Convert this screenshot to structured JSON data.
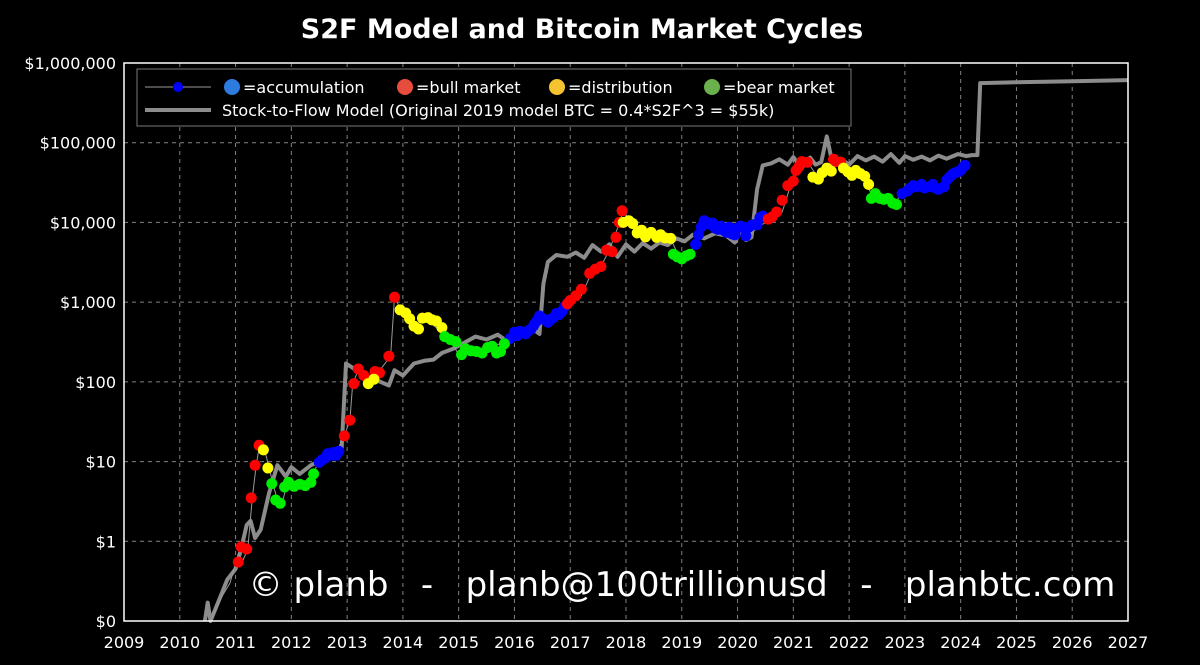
{
  "chart_data": {
    "type": "scatter",
    "title": "S2F Model and Bitcoin Market Cycles",
    "y_scale": "log",
    "xlim": [
      2009,
      2027
    ],
    "ylim": [
      0.1,
      1000000
    ],
    "grid": true,
    "legend_placement": "top-left",
    "x_ticks": [
      "2009",
      "2010",
      "2011",
      "2012",
      "2013",
      "2014",
      "2015",
      "2016",
      "2017",
      "2018",
      "2019",
      "2020",
      "2021",
      "2022",
      "2023",
      "2024",
      "2025",
      "2026",
      "2027"
    ],
    "y_ticks": [
      {
        "value": 0.1,
        "label": "$0"
      },
      {
        "value": 1,
        "label": "$1"
      },
      {
        "value": 10,
        "label": "$10"
      },
      {
        "value": 100,
        "label": "$100"
      },
      {
        "value": 1000,
        "label": "$1,000"
      },
      {
        "value": 10000,
        "label": "$10,000"
      },
      {
        "value": 100000,
        "label": "$100,000"
      },
      {
        "value": 1000000,
        "label": "$1,000,000"
      }
    ],
    "legend": {
      "price_series": "=accumulation",
      "bull": "=bull market",
      "distribution": "=distribution",
      "bear": "=bear market",
      "model": "Stock-to-Flow Model (Original 2019 model BTC = 0.4*S2F^3 = $55k)"
    },
    "colors": {
      "background": "#000000",
      "accumulation": "#0000ff",
      "bull": "#ff0000",
      "distribution": "#ffff00",
      "bear": "#00ee00",
      "model": "#8c8c8c",
      "price_line": "#9a9a9a",
      "legend_accumulation_icon": "#2e7be0",
      "legend_bull_icon": "#e84c3d",
      "legend_distribution_icon": "#f4c430",
      "legend_bear_icon": "#6ab04c"
    },
    "s2f_model": {
      "name": "Stock-to-Flow Model (Original 2019 model BTC = 0.4*S2F^3 = $55k)",
      "points": [
        [
          2010.45,
          0.1
        ],
        [
          2010.5,
          0.17
        ],
        [
          2010.55,
          0.1
        ],
        [
          2010.75,
          0.22
        ],
        [
          2010.85,
          0.33
        ],
        [
          2011.0,
          0.45
        ],
        [
          2011.1,
          0.8
        ],
        [
          2011.2,
          1.6
        ],
        [
          2011.27,
          1.8
        ],
        [
          2011.35,
          1.1
        ],
        [
          2011.45,
          1.4
        ],
        [
          2011.6,
          4.0
        ],
        [
          2011.75,
          9.0
        ],
        [
          2011.9,
          6.5
        ],
        [
          2012.0,
          8.5
        ],
        [
          2012.15,
          7.0
        ],
        [
          2012.35,
          9.0
        ],
        [
          2012.55,
          10.5
        ],
        [
          2012.75,
          12.5
        ],
        [
          2012.9,
          13.5
        ],
        [
          2012.98,
          170
        ],
        [
          2013.1,
          150
        ],
        [
          2013.3,
          120
        ],
        [
          2013.45,
          110
        ],
        [
          2013.6,
          100
        ],
        [
          2013.75,
          90
        ],
        [
          2013.85,
          140
        ],
        [
          2014.0,
          120
        ],
        [
          2014.2,
          170
        ],
        [
          2014.4,
          185
        ],
        [
          2014.55,
          190
        ],
        [
          2014.7,
          230
        ],
        [
          2014.9,
          260
        ],
        [
          2015.1,
          310
        ],
        [
          2015.3,
          370
        ],
        [
          2015.5,
          340
        ],
        [
          2015.7,
          390
        ],
        [
          2015.85,
          330
        ],
        [
          2016.0,
          420
        ],
        [
          2016.2,
          390
        ],
        [
          2016.35,
          450
        ],
        [
          2016.45,
          400
        ],
        [
          2016.52,
          1700
        ],
        [
          2016.6,
          3200
        ],
        [
          2016.75,
          3900
        ],
        [
          2016.95,
          3700
        ],
        [
          2017.1,
          4200
        ],
        [
          2017.25,
          3600
        ],
        [
          2017.4,
          5200
        ],
        [
          2017.55,
          4300
        ],
        [
          2017.7,
          5300
        ],
        [
          2017.85,
          3700
        ],
        [
          2018.0,
          5300
        ],
        [
          2018.15,
          4300
        ],
        [
          2018.3,
          5500
        ],
        [
          2018.45,
          4700
        ],
        [
          2018.6,
          5600
        ],
        [
          2018.75,
          5200
        ],
        [
          2018.9,
          6300
        ],
        [
          2019.05,
          5800
        ],
        [
          2019.2,
          7000
        ],
        [
          2019.4,
          6300
        ],
        [
          2019.6,
          7300
        ],
        [
          2019.8,
          6800
        ],
        [
          2019.95,
          5600
        ],
        [
          2020.05,
          7800
        ],
        [
          2020.15,
          6000
        ],
        [
          2020.25,
          6500
        ],
        [
          2020.35,
          26000
        ],
        [
          2020.45,
          52000
        ],
        [
          2020.6,
          55000
        ],
        [
          2020.75,
          62000
        ],
        [
          2020.9,
          53000
        ],
        [
          2021.0,
          66000
        ],
        [
          2021.15,
          48000
        ],
        [
          2021.3,
          65000
        ],
        [
          2021.4,
          53000
        ],
        [
          2021.5,
          57000
        ],
        [
          2021.6,
          120000
        ],
        [
          2021.7,
          55000
        ],
        [
          2021.85,
          63000
        ],
        [
          2022.0,
          53000
        ],
        [
          2022.15,
          68000
        ],
        [
          2022.3,
          60000
        ],
        [
          2022.45,
          67000
        ],
        [
          2022.6,
          58000
        ],
        [
          2022.75,
          72000
        ],
        [
          2022.9,
          56000
        ],
        [
          2023.0,
          68000
        ],
        [
          2023.15,
          61000
        ],
        [
          2023.3,
          67000
        ],
        [
          2023.45,
          60000
        ],
        [
          2023.6,
          69000
        ],
        [
          2023.75,
          63000
        ],
        [
          2023.95,
          72000
        ],
        [
          2024.1,
          68000
        ],
        [
          2024.2,
          70000
        ],
        [
          2024.3,
          70000
        ],
        [
          2024.35,
          560000
        ],
        [
          2025.0,
          575000
        ],
        [
          2026.0,
          590000
        ],
        [
          2027.0,
          610000
        ]
      ]
    },
    "price_line": [
      [
        2010.55,
        0.1
      ],
      [
        2010.75,
        0.2
      ],
      [
        2010.9,
        0.3
      ],
      [
        2011.05,
        0.7
      ],
      [
        2011.12,
        0.55
      ],
      [
        2011.22,
        0.8
      ],
      [
        2011.3,
        3.5
      ],
      [
        2011.37,
        9
      ],
      [
        2011.43,
        16
      ],
      [
        2011.52,
        14
      ],
      [
        2011.6,
        8.5
      ],
      [
        2011.67,
        5.3
      ],
      [
        2011.75,
        3.3
      ],
      [
        2011.83,
        3.0
      ],
      [
        2011.92,
        5.0
      ],
      [
        2012.1,
        5.0
      ],
      [
        2012.3,
        5.5
      ],
      [
        2012.5,
        10
      ],
      [
        2012.8,
        13
      ],
      [
        2012.95,
        21
      ],
      [
        2013.05,
        33
      ],
      [
        2013.1,
        95
      ],
      [
        2013.2,
        140
      ],
      [
        2013.3,
        100
      ],
      [
        2013.55,
        130
      ],
      [
        2013.78,
        210
      ],
      [
        2013.85,
        1150
      ],
      [
        2014.0,
        720
      ],
      [
        2014.2,
        500
      ],
      [
        2014.4,
        620
      ],
      [
        2014.65,
        450
      ],
      [
        2014.85,
        330
      ],
      [
        2015.0,
        220
      ],
      [
        2015.3,
        240
      ],
      [
        2015.6,
        270
      ],
      [
        2015.85,
        330
      ],
      [
        2016.0,
        400
      ],
      [
        2016.3,
        430
      ],
      [
        2016.5,
        650
      ],
      [
        2016.75,
        620
      ],
      [
        2016.95,
        950
      ],
      [
        2017.2,
        1200
      ],
      [
        2017.4,
        2500
      ],
      [
        2017.55,
        2800
      ],
      [
        2017.7,
        4500
      ],
      [
        2017.85,
        8500
      ],
      [
        2017.95,
        14000
      ],
      [
        2018.1,
        10000
      ],
      [
        2018.3,
        8000
      ],
      [
        2018.6,
        6700
      ],
      [
        2018.8,
        6300
      ],
      [
        2018.95,
        3700
      ],
      [
        2019.1,
        3800
      ],
      [
        2019.25,
        5300
      ],
      [
        2019.4,
        10000
      ],
      [
        2019.6,
        9500
      ],
      [
        2019.85,
        7500
      ],
      [
        2020.0,
        9000
      ],
      [
        2020.2,
        7000
      ],
      [
        2020.45,
        9500
      ],
      [
        2020.65,
        11500
      ],
      [
        2020.8,
        13500
      ],
      [
        2020.95,
        29000
      ],
      [
        2021.1,
        47000
      ],
      [
        2021.25,
        58000
      ],
      [
        2021.45,
        36000
      ],
      [
        2021.6,
        42000
      ],
      [
        2021.75,
        60000
      ],
      [
        2021.9,
        48000
      ],
      [
        2022.05,
        42000
      ],
      [
        2022.25,
        35000
      ],
      [
        2022.45,
        20000
      ],
      [
        2022.6,
        21000
      ],
      [
        2022.8,
        17000
      ],
      [
        2022.95,
        23000
      ],
      [
        2023.2,
        28000
      ],
      [
        2023.4,
        29000
      ],
      [
        2023.6,
        27000
      ],
      [
        2023.8,
        35000
      ],
      [
        2023.95,
        43000
      ],
      [
        2024.08,
        52000
      ]
    ],
    "accumulation": [
      [
        2012.5,
        9.8
      ],
      [
        2012.55,
        10.5
      ],
      [
        2012.6,
        11
      ],
      [
        2012.65,
        12.5
      ],
      [
        2012.7,
        12
      ],
      [
        2012.75,
        13
      ],
      [
        2012.8,
        12
      ],
      [
        2012.85,
        13.5
      ],
      [
        2015.92,
        350
      ],
      [
        2016.0,
        420
      ],
      [
        2016.05,
        380
      ],
      [
        2016.1,
        430
      ],
      [
        2016.15,
        420
      ],
      [
        2016.2,
        400
      ],
      [
        2016.25,
        440
      ],
      [
        2016.3,
        460
      ],
      [
        2016.35,
        520
      ],
      [
        2016.4,
        580
      ],
      [
        2016.45,
        670
      ],
      [
        2016.5,
        620
      ],
      [
        2016.55,
        600
      ],
      [
        2016.6,
        560
      ],
      [
        2016.65,
        610
      ],
      [
        2016.7,
        640
      ],
      [
        2016.75,
        720
      ],
      [
        2016.8,
        700
      ],
      [
        2016.85,
        760
      ],
      [
        2016.9,
        880
      ],
      [
        2019.25,
        5300
      ],
      [
        2019.3,
        7000
      ],
      [
        2019.35,
        8800
      ],
      [
        2019.4,
        10500
      ],
      [
        2019.45,
        10000
      ],
      [
        2019.5,
        9500
      ],
      [
        2019.55,
        9800
      ],
      [
        2019.6,
        8500
      ],
      [
        2019.65,
        8200
      ],
      [
        2019.7,
        9000
      ],
      [
        2019.75,
        8000
      ],
      [
        2019.8,
        7500
      ],
      [
        2019.85,
        8700
      ],
      [
        2019.9,
        7200
      ],
      [
        2019.95,
        7000
      ],
      [
        2020.0,
        8500
      ],
      [
        2020.05,
        9000
      ],
      [
        2020.1,
        8700
      ],
      [
        2020.15,
        6800
      ],
      [
        2020.2,
        8700
      ],
      [
        2020.25,
        9200
      ],
      [
        2020.3,
        9400
      ],
      [
        2020.35,
        9300
      ],
      [
        2020.4,
        11500
      ],
      [
        2020.45,
        12000
      ],
      [
        2022.95,
        23000
      ],
      [
        2023.05,
        25000
      ],
      [
        2023.1,
        27000
      ],
      [
        2023.15,
        29000
      ],
      [
        2023.2,
        28000
      ],
      [
        2023.3,
        30000
      ],
      [
        2023.35,
        27000
      ],
      [
        2023.45,
        28000
      ],
      [
        2023.5,
        30000
      ],
      [
        2023.55,
        27000
      ],
      [
        2023.6,
        26000
      ],
      [
        2023.7,
        28000
      ],
      [
        2023.75,
        34000
      ],
      [
        2023.8,
        37000
      ],
      [
        2023.85,
        40000
      ],
      [
        2023.9,
        42000
      ],
      [
        2023.95,
        43000
      ],
      [
        2024.0,
        45000
      ],
      [
        2024.05,
        50000
      ],
      [
        2024.08,
        52000
      ]
    ],
    "bull": [
      [
        2011.05,
        0.55
      ],
      [
        2011.1,
        0.85
      ],
      [
        2011.2,
        0.8
      ],
      [
        2011.28,
        3.5
      ],
      [
        2011.35,
        9
      ],
      [
        2011.42,
        16
      ],
      [
        2012.95,
        21
      ],
      [
        2013.05,
        33
      ],
      [
        2013.12,
        95
      ],
      [
        2013.2,
        145
      ],
      [
        2013.3,
        120
      ],
      [
        2013.5,
        135
      ],
      [
        2013.58,
        130
      ],
      [
        2013.75,
        210
      ],
      [
        2013.85,
        1150
      ],
      [
        2016.95,
        950
      ],
      [
        2017.0,
        1050
      ],
      [
        2017.1,
        1200
      ],
      [
        2017.2,
        1450
      ],
      [
        2017.35,
        2300
      ],
      [
        2017.45,
        2600
      ],
      [
        2017.55,
        2800
      ],
      [
        2017.65,
        4500
      ],
      [
        2017.75,
        4300
      ],
      [
        2017.82,
        6500
      ],
      [
        2017.88,
        10000
      ],
      [
        2017.93,
        14000
      ],
      [
        2020.55,
        11000
      ],
      [
        2020.62,
        11700
      ],
      [
        2020.7,
        13500
      ],
      [
        2020.8,
        19000
      ],
      [
        2020.9,
        29000
      ],
      [
        2021.0,
        33000
      ],
      [
        2021.05,
        45000
      ],
      [
        2021.1,
        50000
      ],
      [
        2021.15,
        58000
      ],
      [
        2021.25,
        57000
      ],
      [
        2021.72,
        62000
      ],
      [
        2021.78,
        58000
      ],
      [
        2021.85,
        57000
      ]
    ],
    "distribution": [
      [
        2011.5,
        14
      ],
      [
        2011.58,
        8.3
      ],
      [
        2013.38,
        95
      ],
      [
        2013.48,
        108
      ],
      [
        2013.95,
        800
      ],
      [
        2014.05,
        730
      ],
      [
        2014.12,
        620
      ],
      [
        2014.2,
        500
      ],
      [
        2014.28,
        460
      ],
      [
        2014.35,
        630
      ],
      [
        2014.45,
        640
      ],
      [
        2014.52,
        600
      ],
      [
        2014.6,
        580
      ],
      [
        2014.7,
        480
      ],
      [
        2017.95,
        10000
      ],
      [
        2018.05,
        10500
      ],
      [
        2018.12,
        9700
      ],
      [
        2018.2,
        7400
      ],
      [
        2018.28,
        8000
      ],
      [
        2018.35,
        6600
      ],
      [
        2018.45,
        7500
      ],
      [
        2018.55,
        6500
      ],
      [
        2018.62,
        7000
      ],
      [
        2018.7,
        6400
      ],
      [
        2018.8,
        6300
      ],
      [
        2021.35,
        37000
      ],
      [
        2021.45,
        35000
      ],
      [
        2021.52,
        42000
      ],
      [
        2021.6,
        48000
      ],
      [
        2021.68,
        44000
      ],
      [
        2021.9,
        48000
      ],
      [
        2021.98,
        43000
      ],
      [
        2022.05,
        39000
      ],
      [
        2022.12,
        45000
      ],
      [
        2022.2,
        41000
      ],
      [
        2022.28,
        38000
      ],
      [
        2022.35,
        30000
      ]
    ],
    "bear": [
      [
        2011.65,
        5.3
      ],
      [
        2011.72,
        3.3
      ],
      [
        2011.8,
        3.0
      ],
      [
        2011.88,
        4.8
      ],
      [
        2011.95,
        5.5
      ],
      [
        2012.05,
        4.9
      ],
      [
        2012.15,
        5.2
      ],
      [
        2012.25,
        5.0
      ],
      [
        2012.35,
        5.5
      ],
      [
        2012.4,
        7
      ],
      [
        2014.75,
        370
      ],
      [
        2014.85,
        340
      ],
      [
        2014.95,
        320
      ],
      [
        2015.05,
        220
      ],
      [
        2015.12,
        260
      ],
      [
        2015.22,
        245
      ],
      [
        2015.32,
        240
      ],
      [
        2015.42,
        230
      ],
      [
        2015.52,
        270
      ],
      [
        2015.6,
        280
      ],
      [
        2015.68,
        230
      ],
      [
        2015.75,
        240
      ],
      [
        2015.82,
        300
      ],
      [
        2018.85,
        4000
      ],
      [
        2018.92,
        3700
      ],
      [
        2019.0,
        3500
      ],
      [
        2019.08,
        3800
      ],
      [
        2019.15,
        4000
      ],
      [
        2022.4,
        20000
      ],
      [
        2022.47,
        23000
      ],
      [
        2022.55,
        20000
      ],
      [
        2022.62,
        19500
      ],
      [
        2022.7,
        20000
      ],
      [
        2022.78,
        17500
      ],
      [
        2022.85,
        16800
      ]
    ]
  },
  "watermark": "© planb   -   planb@100trillionusd   -   planbtc.com"
}
